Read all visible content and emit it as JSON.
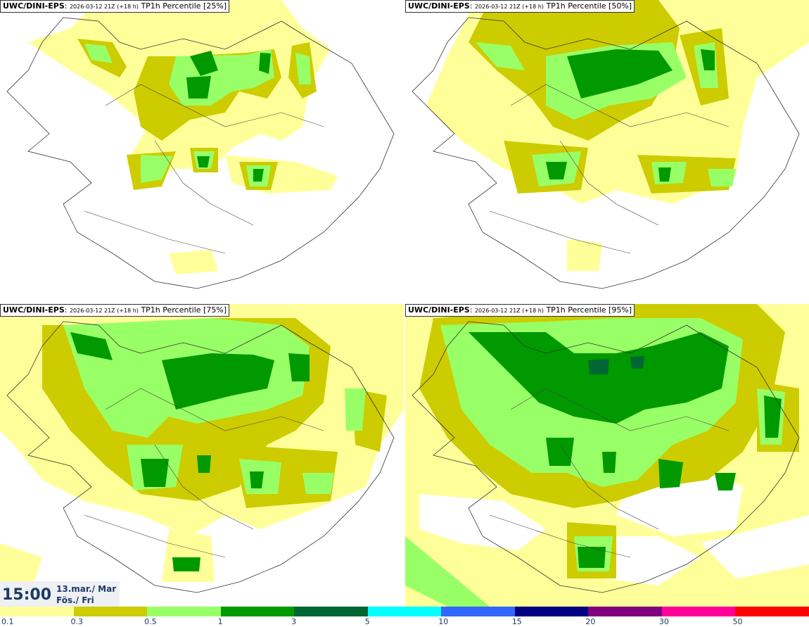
{
  "panels": [
    {
      "source": "UWC/DINI-EPS",
      "run": "2026-03-12 21Z (+18 h)",
      "param": "TP1h Percentile [25%]"
    },
    {
      "source": "UWC/DINI-EPS",
      "run": "2026-03-12 21Z (+18 h)",
      "param": "TP1h Percentile [50%]"
    },
    {
      "source": "UWC/DINI-EPS",
      "run": "2026-03-12 21Z (+18 h)",
      "param": "TP1h Percentile [75%]"
    },
    {
      "source": "UWC/DINI-EPS",
      "run": "2026-03-12 21Z (+18 h)",
      "param": "TP1h Percentile [95%]"
    }
  ],
  "valid_time": {
    "time": "15:00",
    "date_line1": "13.mar./ Mar",
    "date_line2": "Fös./ Fri"
  },
  "colorbar": {
    "colors": [
      "#ffff99",
      "#cccc00",
      "#99ff66",
      "#009900",
      "#006633",
      "#00ffff",
      "#3366ff",
      "#000080",
      "#800080",
      "#ff0099",
      "#ff0000"
    ],
    "ticks": [
      "0.1",
      "0.3",
      "0.5",
      "1",
      "3",
      "5",
      "10",
      "15",
      "20",
      "30",
      "50"
    ]
  }
}
